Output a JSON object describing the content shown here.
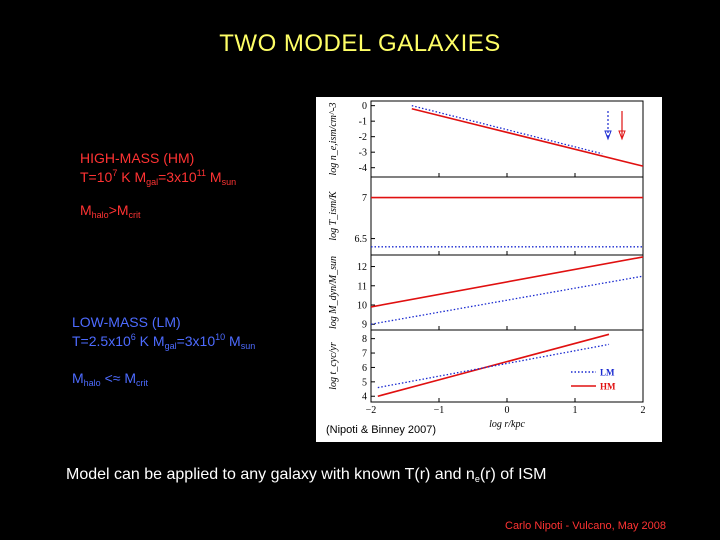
{
  "slide": {
    "title": "TWO MODEL GALAXIES",
    "hm": {
      "heading": "HIGH-MASS (HM)",
      "t_prefix": "T=10",
      "t_exp": "7",
      "t_unit": " K M",
      "gal_sub": "gal",
      "m_prefix": "=3x10",
      "m_exp": "11",
      "m_unit": " M",
      "sun_sub": "sun",
      "halo_m": "M",
      "halo_sub": "halo",
      "relation": ">M",
      "crit_sub": "crit"
    },
    "lm": {
      "heading": "LOW-MASS (LM)",
      "t_prefix": "T=2.5x10",
      "t_exp": "6",
      "t_unit": " K M",
      "gal_sub": "gal",
      "m_prefix": "=3x10",
      "m_exp": "10",
      "m_unit": " M",
      "sun_sub": "sun",
      "halo_m": "M",
      "halo_sub": "halo",
      "relation": " <≈ M",
      "crit_sub": "crit"
    },
    "citation": "(Nipoti & Binney 2007)",
    "bottom_main": "Model can be applied to any galaxy with known T(r) and n",
    "bottom_sub": "e",
    "bottom_end": "(r) of ISM",
    "footer": "Carlo Nipoti  -  Vulcano, May 2008",
    "colors": {
      "title": "#ffff66",
      "hm": "#ff3333",
      "lm": "#4d6bff",
      "footer": "#ff3333",
      "background": "#000000"
    }
  },
  "chart_data": {
    "type": "line",
    "x": [
      -2,
      2
    ],
    "xlabel": "log r/kpc",
    "xlim": [
      -2,
      2
    ],
    "x_ticks": [
      "-2",
      "-1",
      "0",
      "1",
      "2"
    ],
    "legend": {
      "placement": "bottom-right",
      "entries": [
        "LM",
        "HM"
      ]
    },
    "panels": [
      {
        "ylabel": "log n_e,ism/cm^-3",
        "ylim": [
          -4.6,
          0.3
        ],
        "y_ticks": [
          "0",
          "-1",
          "-2",
          "-3",
          "-4"
        ],
        "series": [
          {
            "name": "HM",
            "x": [
              -1.4,
              2
            ],
            "values": [
              -0.2,
              -3.9
            ]
          },
          {
            "name": "LM",
            "x": [
              -1.4,
              1.4
            ],
            "values": [
              0.0,
              -3.1
            ]
          }
        ],
        "markers": [
          "HM",
          "LM"
        ]
      },
      {
        "ylabel": "log T_ism/K",
        "ylim": [
          6.3,
          7.25
        ],
        "y_ticks": [
          "7",
          "6.5"
        ],
        "series": [
          {
            "name": "HM",
            "x": [
              -2,
              2
            ],
            "values": [
              7.0,
              7.0
            ]
          },
          {
            "name": "LM",
            "x": [
              -2,
              2
            ],
            "values": [
              6.4,
              6.4
            ]
          }
        ]
      },
      {
        "ylabel": "log M_dyn/M_sun",
        "ylim": [
          8.7,
          12.6
        ],
        "y_ticks": [
          "12",
          "11",
          "10",
          "9"
        ],
        "series": [
          {
            "name": "HM",
            "x": [
              -2,
              2
            ],
            "values": [
              9.9,
              12.5
            ]
          },
          {
            "name": "LM",
            "x": [
              -2,
              2
            ],
            "values": [
              9.0,
              11.5
            ]
          }
        ]
      },
      {
        "ylabel": "log t_cyc/yr",
        "ylim": [
          3.6,
          8.6
        ],
        "y_ticks": [
          "8",
          "7",
          "6",
          "5",
          "4"
        ],
        "series": [
          {
            "name": "HM",
            "x": [
              -1.9,
              1.5
            ],
            "values": [
              4.0,
              8.3
            ]
          },
          {
            "name": "LM",
            "x": [
              -1.9,
              1.5
            ],
            "values": [
              4.6,
              7.6
            ]
          }
        ]
      }
    ]
  }
}
